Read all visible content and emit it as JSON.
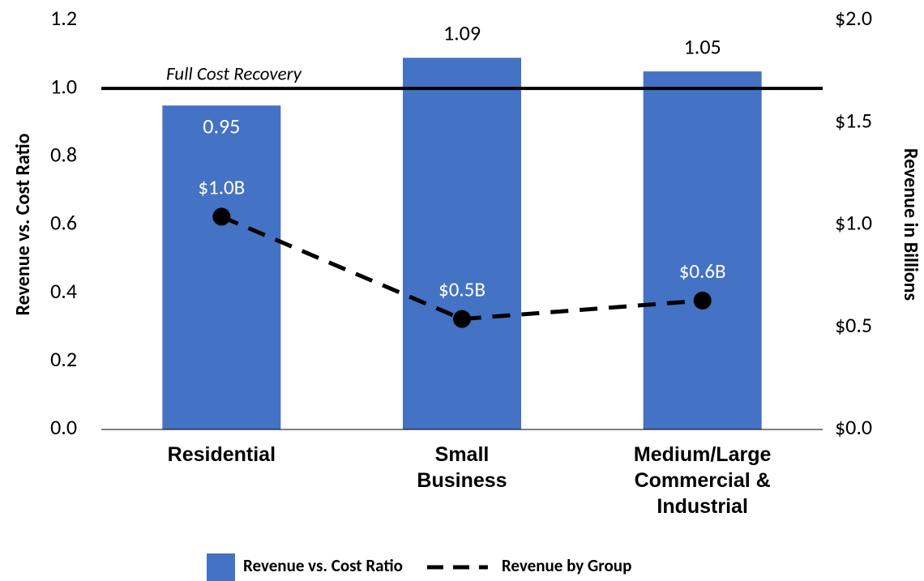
{
  "chart_data": {
    "type": "bar_line",
    "categories": [
      "Residential",
      "Small Business",
      "Medium/Large Commercial & Industrial"
    ],
    "series": [
      {
        "name": "Revenue vs. Cost Ratio",
        "type": "bar",
        "color": "#4472c4",
        "values": [
          0.95,
          1.09,
          1.05
        ]
      },
      {
        "name": "Revenue by Group",
        "type": "line",
        "axis": "y2",
        "color": "#000000",
        "dashed": true,
        "values": [
          1.04,
          0.54,
          0.63
        ],
        "value_labels": [
          "$1.0B",
          "$0.5B",
          "$0.6B"
        ]
      }
    ],
    "ylabel": "Revenue vs. Cost Ratio",
    "y2label": "Revenue in Billions",
    "ylim": [
      0,
      1.2
    ],
    "yticks": [
      {
        "value": 0,
        "label": "0.0"
      },
      0.2,
      0.4,
      0.6,
      0.8,
      {
        "value": 1,
        "label": "1.0"
      },
      1.2
    ],
    "y2lim": [
      0,
      2
    ],
    "y2ticks": [
      {
        "value": 0,
        "label": "$0.0"
      },
      {
        "value": 0.5,
        "label": "$0.5"
      },
      {
        "value": 1,
        "label": "$1.0"
      },
      {
        "value": 1.5,
        "label": "$1.5"
      },
      {
        "value": 2,
        "label": "$2.0"
      }
    ],
    "reference_line": {
      "value": 1,
      "label": "Full Cost Recovery"
    },
    "legend": "bottom"
  }
}
